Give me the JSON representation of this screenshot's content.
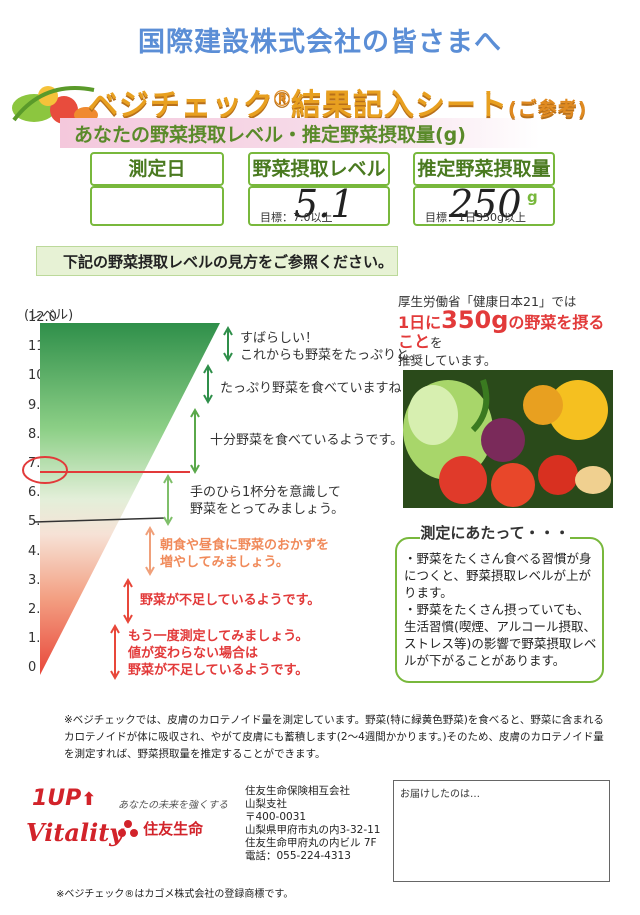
{
  "header": {
    "company": "国際建設株式会社の皆さまへ",
    "title_main": "ベジチェック",
    "title_reg": "Ⓡ",
    "title_rest": "結果記入シート",
    "title_ref": "(ご参考)",
    "subtitle": "あなたの野菜摂取レベル・推定野菜摂取量(g)"
  },
  "result": {
    "date_label": "測定日",
    "date_value": "",
    "level_label": "野菜摂取レベル",
    "level_value": "5.1",
    "level_target": "目標：7.0以上",
    "amount_label": "推定野菜摂取量",
    "amount_value": "250",
    "amount_unit": "g",
    "amount_target": "目標：1日350g以上"
  },
  "guide": {
    "banner": "下記の野菜摂取レベルの見方をご参照ください。",
    "axis_unit": "(レベル)",
    "levels": [
      "12.0",
      "11.0",
      "10.0",
      "9.0",
      "8.0",
      "7.0",
      "6.0",
      "5.0",
      "4.0",
      "3.0",
      "2.0",
      "1.0",
      "0"
    ],
    "messages": [
      {
        "lines": [
          "すばらしい！",
          "これからも野菜をたっぷりと。"
        ],
        "color": "#333333"
      },
      {
        "lines": [
          "たっぷり野菜を食べていますね！"
        ],
        "color": "#333333"
      },
      {
        "lines": [
          "十分野菜を食べているようです。"
        ],
        "color": "#333333"
      },
      {
        "lines": [
          "手のひら1杯分を意識して",
          "野菜をとってみましょう。"
        ],
        "color": "#333333"
      },
      {
        "lines": [
          "朝食や昼食に野菜のおかずを",
          "増やしてみましょう。"
        ],
        "color": "#f08a5a"
      },
      {
        "lines": [
          "野菜が不足しているようです。"
        ],
        "color": "#e23a3a"
      },
      {
        "lines": [
          "もう一度測定してみましょう。",
          "値が変わらない場合は",
          "野菜が不足しているようです。"
        ],
        "color": "#e23a3a"
      }
    ]
  },
  "mhw": {
    "line1": "厚生労働省「健康日本21」では",
    "line2_a": "1日に",
    "line2_num": "350g",
    "line2_b": "の野菜を摂ること",
    "line2_c": "を",
    "line3": "推奨しています。"
  },
  "notes": {
    "title": "測定にあたって・・・",
    "items": [
      "・野菜をたくさん食べる習慣が身につくと、野菜摂取レベルが上がります。",
      "・野菜をたくさん摂っていても、生活習慣(喫煙、アルコール摂取、ストレス等)の影響で野菜摂取レベルが下がることがあります。"
    ]
  },
  "footnote": "※ベジチェックでは、皮膚のカロテノイド量を測定しています。野菜(特に緑黄色野菜)を食べると、野菜に含まれるカロテノイドが体に吸収され、やがて皮膚にも蓄積します(2～4週間かかります。)そのため、皮膚のカロテノイド量を測定すれば、野菜摂取量を推定することができます。",
  "branding": {
    "oneup": "1UP",
    "vitality": "Vitality",
    "tagline": "あなたの未来を強くする",
    "sumitomo": "住友生命"
  },
  "address": {
    "lines": [
      "住友生命保険相互会社",
      "山梨支社",
      "〒400-0031",
      "山梨県甲府市丸の内3-32-11",
      "住友生命甲府丸の内ビル 7F",
      "電話：055-224-4313"
    ]
  },
  "delivery": {
    "label": "お届けしたのは…"
  },
  "trademark": "※ベジチェック®はカゴメ株式会社の登録商標です。",
  "colors": {
    "green": "#78b83c",
    "orange": "#e8a020",
    "blue": "#5b8ed6",
    "red": "#e23a3a"
  }
}
